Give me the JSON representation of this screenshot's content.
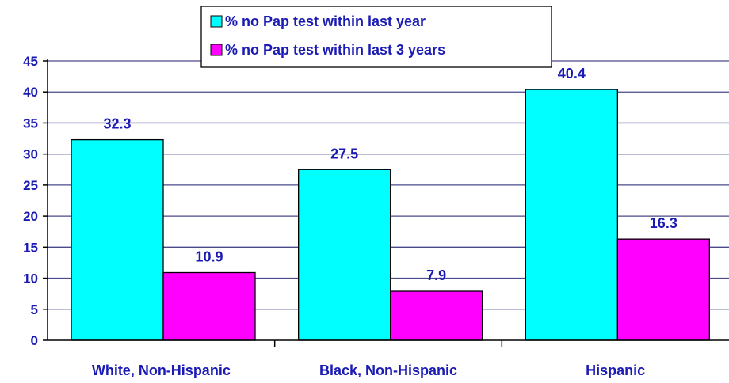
{
  "chart_data": {
    "type": "bar",
    "categories": [
      "White, Non-Hispanic",
      "Black, Non-Hispanic",
      "Hispanic"
    ],
    "series": [
      {
        "name": "% no Pap test within last year",
        "values": [
          32.3,
          27.5,
          40.4
        ],
        "color": "#00ffff"
      },
      {
        "name": "% no Pap test within last 3 years",
        "values": [
          10.9,
          7.9,
          16.3
        ],
        "color": "#ff00ff"
      }
    ],
    "data_labels": [
      [
        "32.3",
        "27.5",
        "40.4"
      ],
      [
        "10.9",
        "7.9",
        "16.3"
      ]
    ],
    "ylim": [
      0,
      45
    ],
    "yticks": [
      0,
      5,
      10,
      15,
      20,
      25,
      30,
      35,
      40,
      45
    ],
    "grid": true,
    "legend_position": "top-center",
    "text_color": "#1a1ab4",
    "grid_color": "#4a4a8a"
  }
}
